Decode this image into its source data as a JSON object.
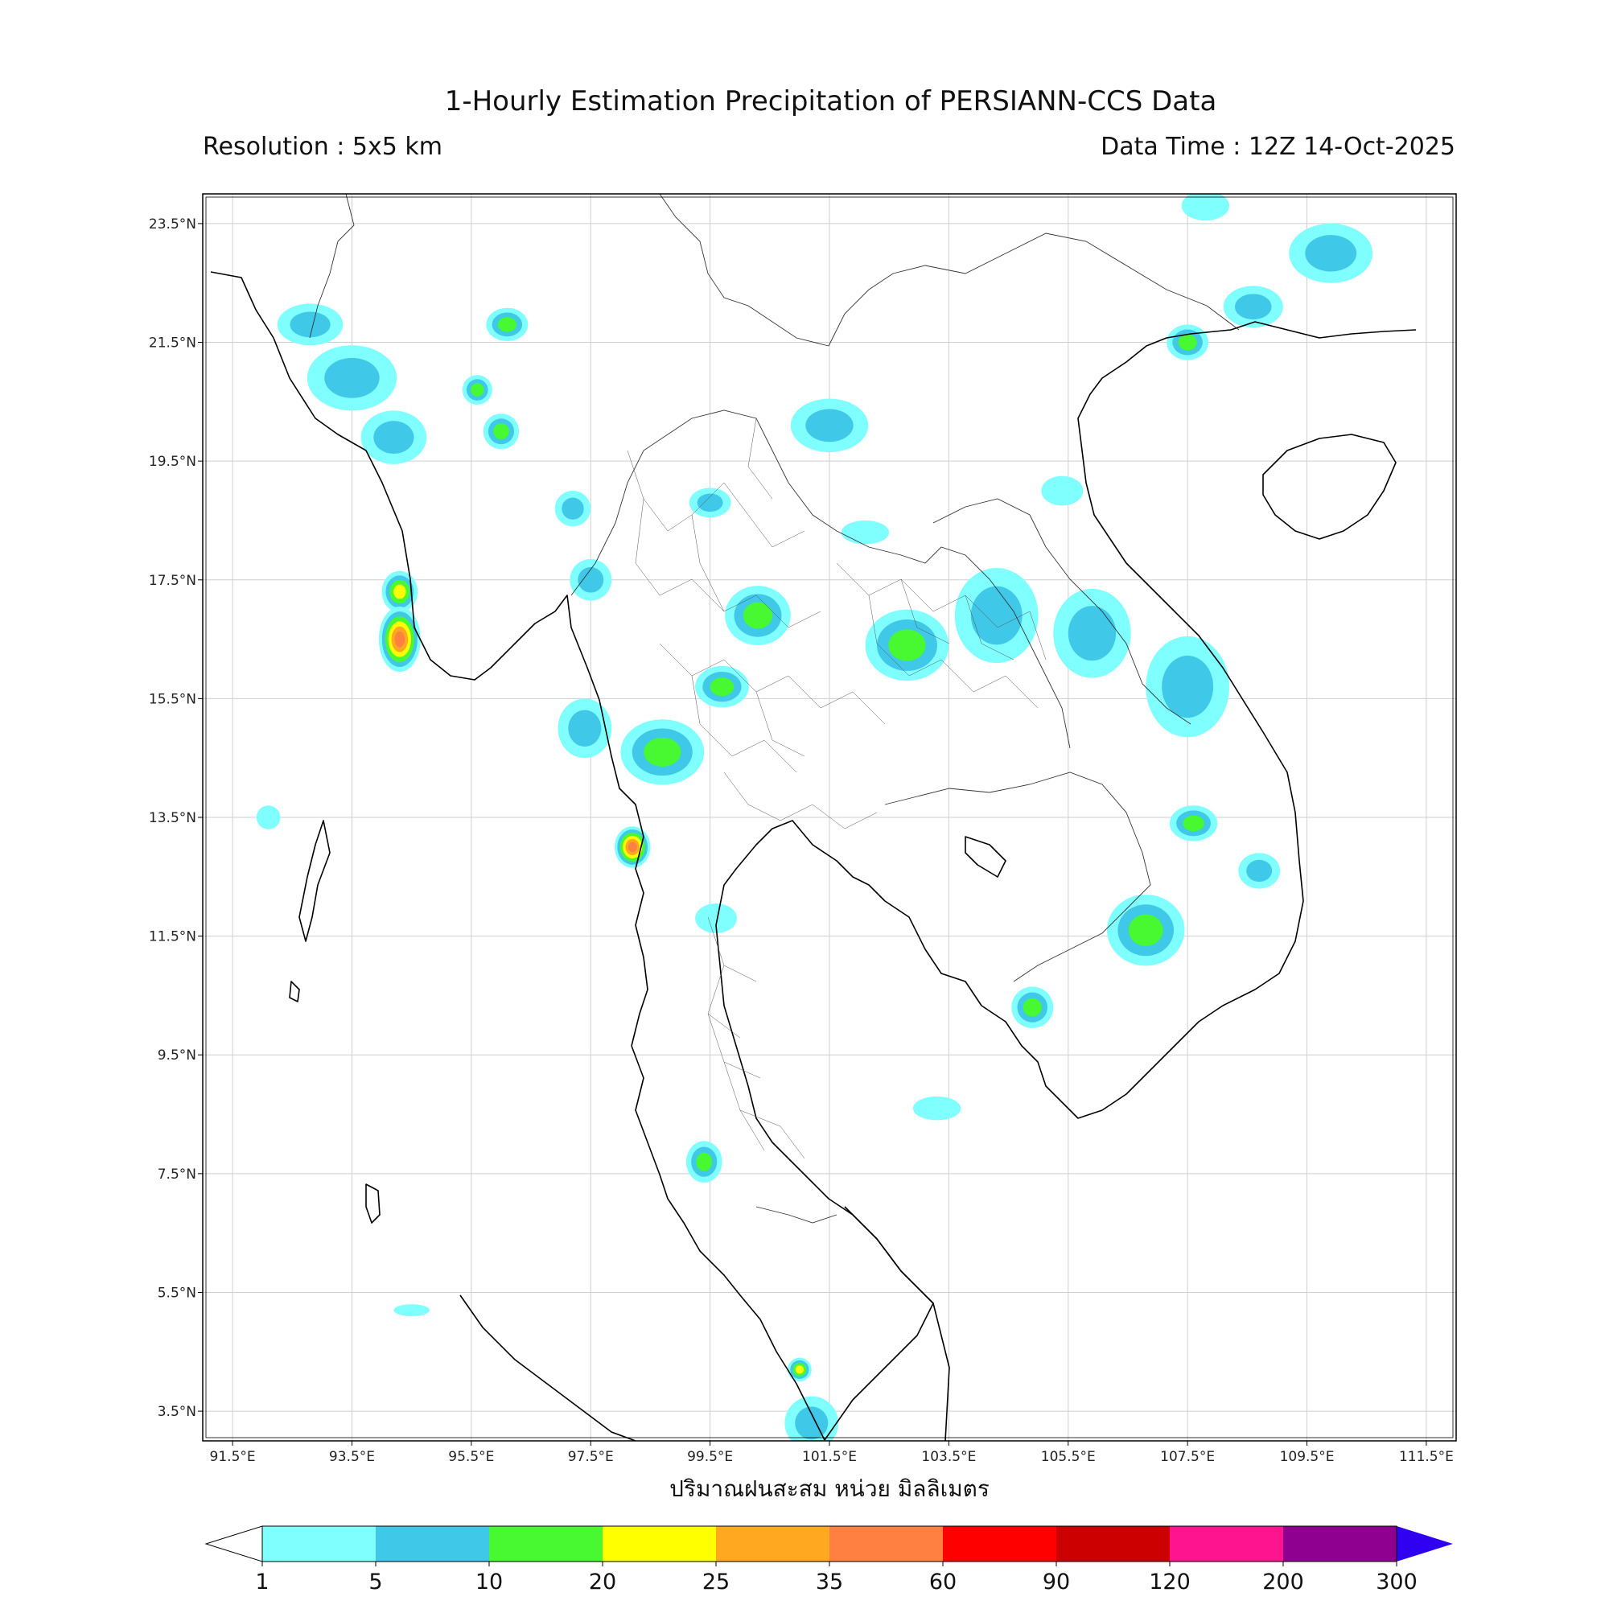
{
  "header": {
    "title": "1-Hourly Estimation Precipitation of PERSIANN-CCS Data",
    "resolution": "Resolution : 5x5 km",
    "data_time": "Data Time : 12Z 14-Oct-2025"
  },
  "map": {
    "lon_range": [
      91.0,
      112.0
    ],
    "lat_range": [
      3.0,
      24.0
    ],
    "lon_ticks": [
      "91.5°E",
      "93.5°E",
      "95.5°E",
      "97.5°E",
      "99.5°E",
      "101.5°E",
      "103.5°E",
      "105.5°E",
      "107.5°E",
      "109.5°E",
      "111.5°E"
    ],
    "lat_ticks": [
      "23.5°N",
      "21.5°N",
      "19.5°N",
      "17.5°N",
      "15.5°N",
      "13.5°N",
      "11.5°N",
      "9.5°N",
      "7.5°N",
      "5.5°N",
      "3.5°N"
    ],
    "xlabel": "ปริมาณฝนสะสม หน่วย มิลลิเมตร",
    "rain_cells": [
      {
        "lon": 92.8,
        "lat": 21.8,
        "rx": 0.55,
        "ry": 0.35,
        "level": 2
      },
      {
        "lon": 93.5,
        "lat": 20.9,
        "rx": 0.75,
        "ry": 0.55,
        "level": 2
      },
      {
        "lon": 94.2,
        "lat": 19.9,
        "rx": 0.55,
        "ry": 0.45,
        "level": 2
      },
      {
        "lon": 96.1,
        "lat": 21.8,
        "rx": 0.35,
        "ry": 0.28,
        "level": 3
      },
      {
        "lon": 95.6,
        "lat": 20.7,
        "rx": 0.25,
        "ry": 0.25,
        "level": 3
      },
      {
        "lon": 96.0,
        "lat": 20.0,
        "rx": 0.3,
        "ry": 0.3,
        "level": 3
      },
      {
        "lon": 97.5,
        "lat": 17.5,
        "rx": 0.35,
        "ry": 0.35,
        "level": 2
      },
      {
        "lon": 97.2,
        "lat": 18.7,
        "rx": 0.3,
        "ry": 0.3,
        "level": 2
      },
      {
        "lon": 97.4,
        "lat": 15.0,
        "rx": 0.45,
        "ry": 0.5,
        "level": 2
      },
      {
        "lon": 94.3,
        "lat": 17.3,
        "rx": 0.3,
        "ry": 0.35,
        "level": 4
      },
      {
        "lon": 94.3,
        "lat": 16.5,
        "rx": 0.35,
        "ry": 0.55,
        "level": 6
      },
      {
        "lon": 98.7,
        "lat": 14.6,
        "rx": 0.7,
        "ry": 0.55,
        "level": 3
      },
      {
        "lon": 98.2,
        "lat": 13.0,
        "rx": 0.3,
        "ry": 0.35,
        "level": 6
      },
      {
        "lon": 100.3,
        "lat": 16.9,
        "rx": 0.55,
        "ry": 0.5,
        "level": 3
      },
      {
        "lon": 99.7,
        "lat": 15.7,
        "rx": 0.45,
        "ry": 0.35,
        "level": 3
      },
      {
        "lon": 99.5,
        "lat": 18.8,
        "rx": 0.35,
        "ry": 0.25,
        "level": 2
      },
      {
        "lon": 101.5,
        "lat": 20.1,
        "rx": 0.65,
        "ry": 0.45,
        "level": 2
      },
      {
        "lon": 102.8,
        "lat": 16.4,
        "rx": 0.7,
        "ry": 0.6,
        "level": 3
      },
      {
        "lon": 104.3,
        "lat": 16.9,
        "rx": 0.7,
        "ry": 0.8,
        "level": 2
      },
      {
        "lon": 105.9,
        "lat": 16.6,
        "rx": 0.65,
        "ry": 0.75,
        "level": 2
      },
      {
        "lon": 107.5,
        "lat": 15.7,
        "rx": 0.7,
        "ry": 0.85,
        "level": 2
      },
      {
        "lon": 107.6,
        "lat": 13.4,
        "rx": 0.4,
        "ry": 0.3,
        "level": 3
      },
      {
        "lon": 106.8,
        "lat": 11.6,
        "rx": 0.65,
        "ry": 0.6,
        "level": 3
      },
      {
        "lon": 104.9,
        "lat": 10.3,
        "rx": 0.35,
        "ry": 0.35,
        "level": 3
      },
      {
        "lon": 108.7,
        "lat": 12.6,
        "rx": 0.35,
        "ry": 0.3,
        "level": 2
      },
      {
        "lon": 107.5,
        "lat": 21.5,
        "rx": 0.35,
        "ry": 0.3,
        "level": 3
      },
      {
        "lon": 108.6,
        "lat": 22.1,
        "rx": 0.5,
        "ry": 0.35,
        "level": 2
      },
      {
        "lon": 109.9,
        "lat": 23.0,
        "rx": 0.7,
        "ry": 0.5,
        "level": 2
      },
      {
        "lon": 107.8,
        "lat": 23.8,
        "rx": 0.4,
        "ry": 0.25,
        "level": 1
      },
      {
        "lon": 99.4,
        "lat": 7.7,
        "rx": 0.3,
        "ry": 0.35,
        "level": 3
      },
      {
        "lon": 101.2,
        "lat": 3.3,
        "rx": 0.45,
        "ry": 0.45,
        "level": 2
      },
      {
        "lon": 101.0,
        "lat": 4.2,
        "rx": 0.2,
        "ry": 0.2,
        "level": 4
      },
      {
        "lon": 102.1,
        "lat": 18.3,
        "rx": 0.4,
        "ry": 0.2,
        "level": 1
      },
      {
        "lon": 105.4,
        "lat": 19.0,
        "rx": 0.35,
        "ry": 0.25,
        "level": 1
      },
      {
        "lon": 103.3,
        "lat": 8.6,
        "rx": 0.4,
        "ry": 0.2,
        "level": 1
      },
      {
        "lon": 99.6,
        "lat": 11.8,
        "rx": 0.35,
        "ry": 0.25,
        "level": 1
      },
      {
        "lon": 94.5,
        "lat": 5.2,
        "rx": 0.3,
        "ry": 0.1,
        "level": 1
      },
      {
        "lon": 92.1,
        "lat": 13.5,
        "rx": 0.2,
        "ry": 0.2,
        "level": 1
      }
    ]
  },
  "colorbar": {
    "labels": [
      "1",
      "5",
      "10",
      "20",
      "25",
      "35",
      "60",
      "90",
      "120",
      "200",
      "300"
    ],
    "colors": [
      "#80FFFF",
      "#40C8E8",
      "#48F830",
      "#FFFF00",
      "#FFA820",
      "#FF8040",
      "#FF0000",
      "#CC0000",
      "#FF1490",
      "#900090",
      "#3000F0"
    ],
    "under_color": "#FFFFFF"
  }
}
